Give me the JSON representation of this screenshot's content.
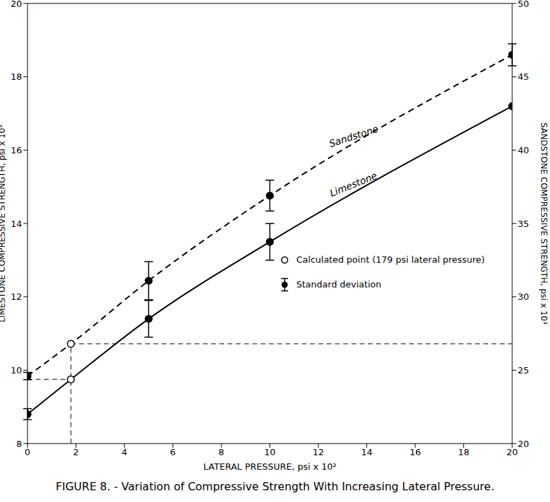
{
  "chart_data": {
    "type": "line",
    "title": "FIGURE 8. - Variation of Compressive Strength With Increasing Lateral Pressure.",
    "x_label": "LATERAL PRESSURE, psi x 10²",
    "y_label": "LIMESTONE COMPRESSIVE STRENGTH, psi x 10³",
    "y2_label": "SANDSTONE COMPRESSIVE STRENGTH, psi x 10³",
    "x": [
      0,
      1.79,
      5,
      10,
      20
    ],
    "xlim": [
      0,
      20
    ],
    "xticks": [
      0,
      2,
      4,
      6,
      8,
      10,
      12,
      14,
      16,
      18,
      20
    ],
    "ylim": [
      8,
      20
    ],
    "yticks": [
      8,
      10,
      12,
      14,
      16,
      18,
      20
    ],
    "y2lim": [
      20,
      50
    ],
    "y2ticks": [
      20,
      25,
      30,
      35,
      40,
      45,
      50
    ],
    "grid": false,
    "series": [
      {
        "name": "Sandstone",
        "axis": "y2",
        "color": "#000000",
        "line_style": "dashed",
        "marker": "circle",
        "values": [
          24.6,
          26.8,
          31.1,
          36.9,
          46.5
        ],
        "error": [
          0.25,
          null,
          1.3,
          1.05,
          0.75
        ]
      },
      {
        "name": "Limestone",
        "color": "#000000",
        "line_style": "solid",
        "marker": "circle",
        "values": [
          8.8,
          9.75,
          11.4,
          13.5,
          17.2
        ],
        "error": [
          0.15,
          null,
          0.5,
          0.5,
          null
        ]
      }
    ],
    "calculated_point": {
      "x": 1.79,
      "label": "Calculated point (179 psi lateral pressure)"
    },
    "error_label": "Standard deviation"
  }
}
